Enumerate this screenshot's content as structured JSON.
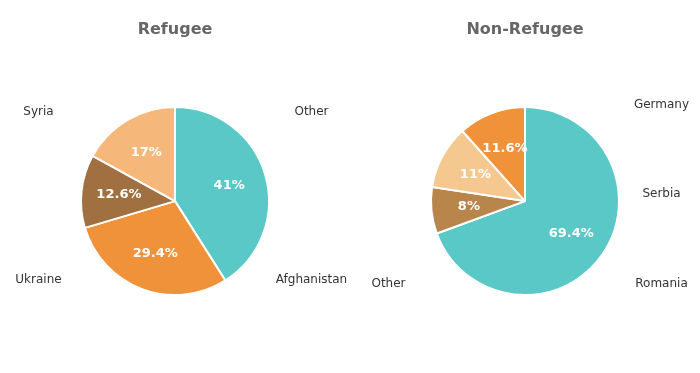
{
  "chart_data": [
    {
      "type": "pie",
      "title": "Refugee",
      "values": [
        41,
        29.4,
        12.6,
        17
      ],
      "value_labels": [
        "41%",
        "29.4%",
        "12.6%",
        "17%"
      ],
      "colors": [
        "#5BC8C8",
        "#F0923A",
        "#A07040",
        "#F5B87A"
      ],
      "data_labels": true,
      "annotations": [
        "Syria",
        "Other",
        "Afghanistan",
        "Ukraine"
      ]
    },
    {
      "type": "pie",
      "title": "Non-Refugee",
      "values": [
        69.4,
        8,
        11,
        11.6
      ],
      "value_labels": [
        "69.4%",
        "8%",
        "11%",
        "11.6%"
      ],
      "colors": [
        "#5BC8C8",
        "#B8864A",
        "#F5C890",
        "#F0923A"
      ],
      "data_labels": true,
      "annotations": [
        "Germany",
        "Serbia",
        "Romania",
        "Other"
      ]
    }
  ]
}
